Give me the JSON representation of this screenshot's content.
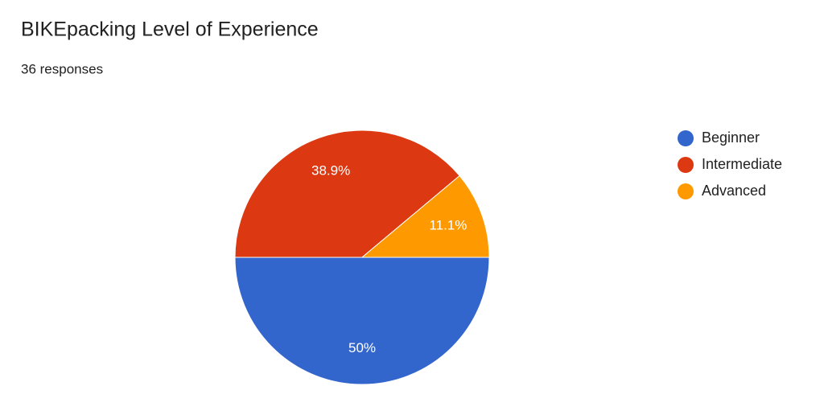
{
  "chart_data": {
    "type": "pie",
    "title": "BIKEpacking Level of Experience",
    "subtitle": "36 responses",
    "categories": [
      "Beginner",
      "Intermediate",
      "Advanced"
    ],
    "values": [
      50,
      38.9,
      11.1
    ],
    "value_labels": [
      "50%",
      "38.9%",
      "11.1%"
    ],
    "colors": [
      "#3366cc",
      "#dc3912",
      "#ff9900"
    ],
    "legend": "right"
  }
}
